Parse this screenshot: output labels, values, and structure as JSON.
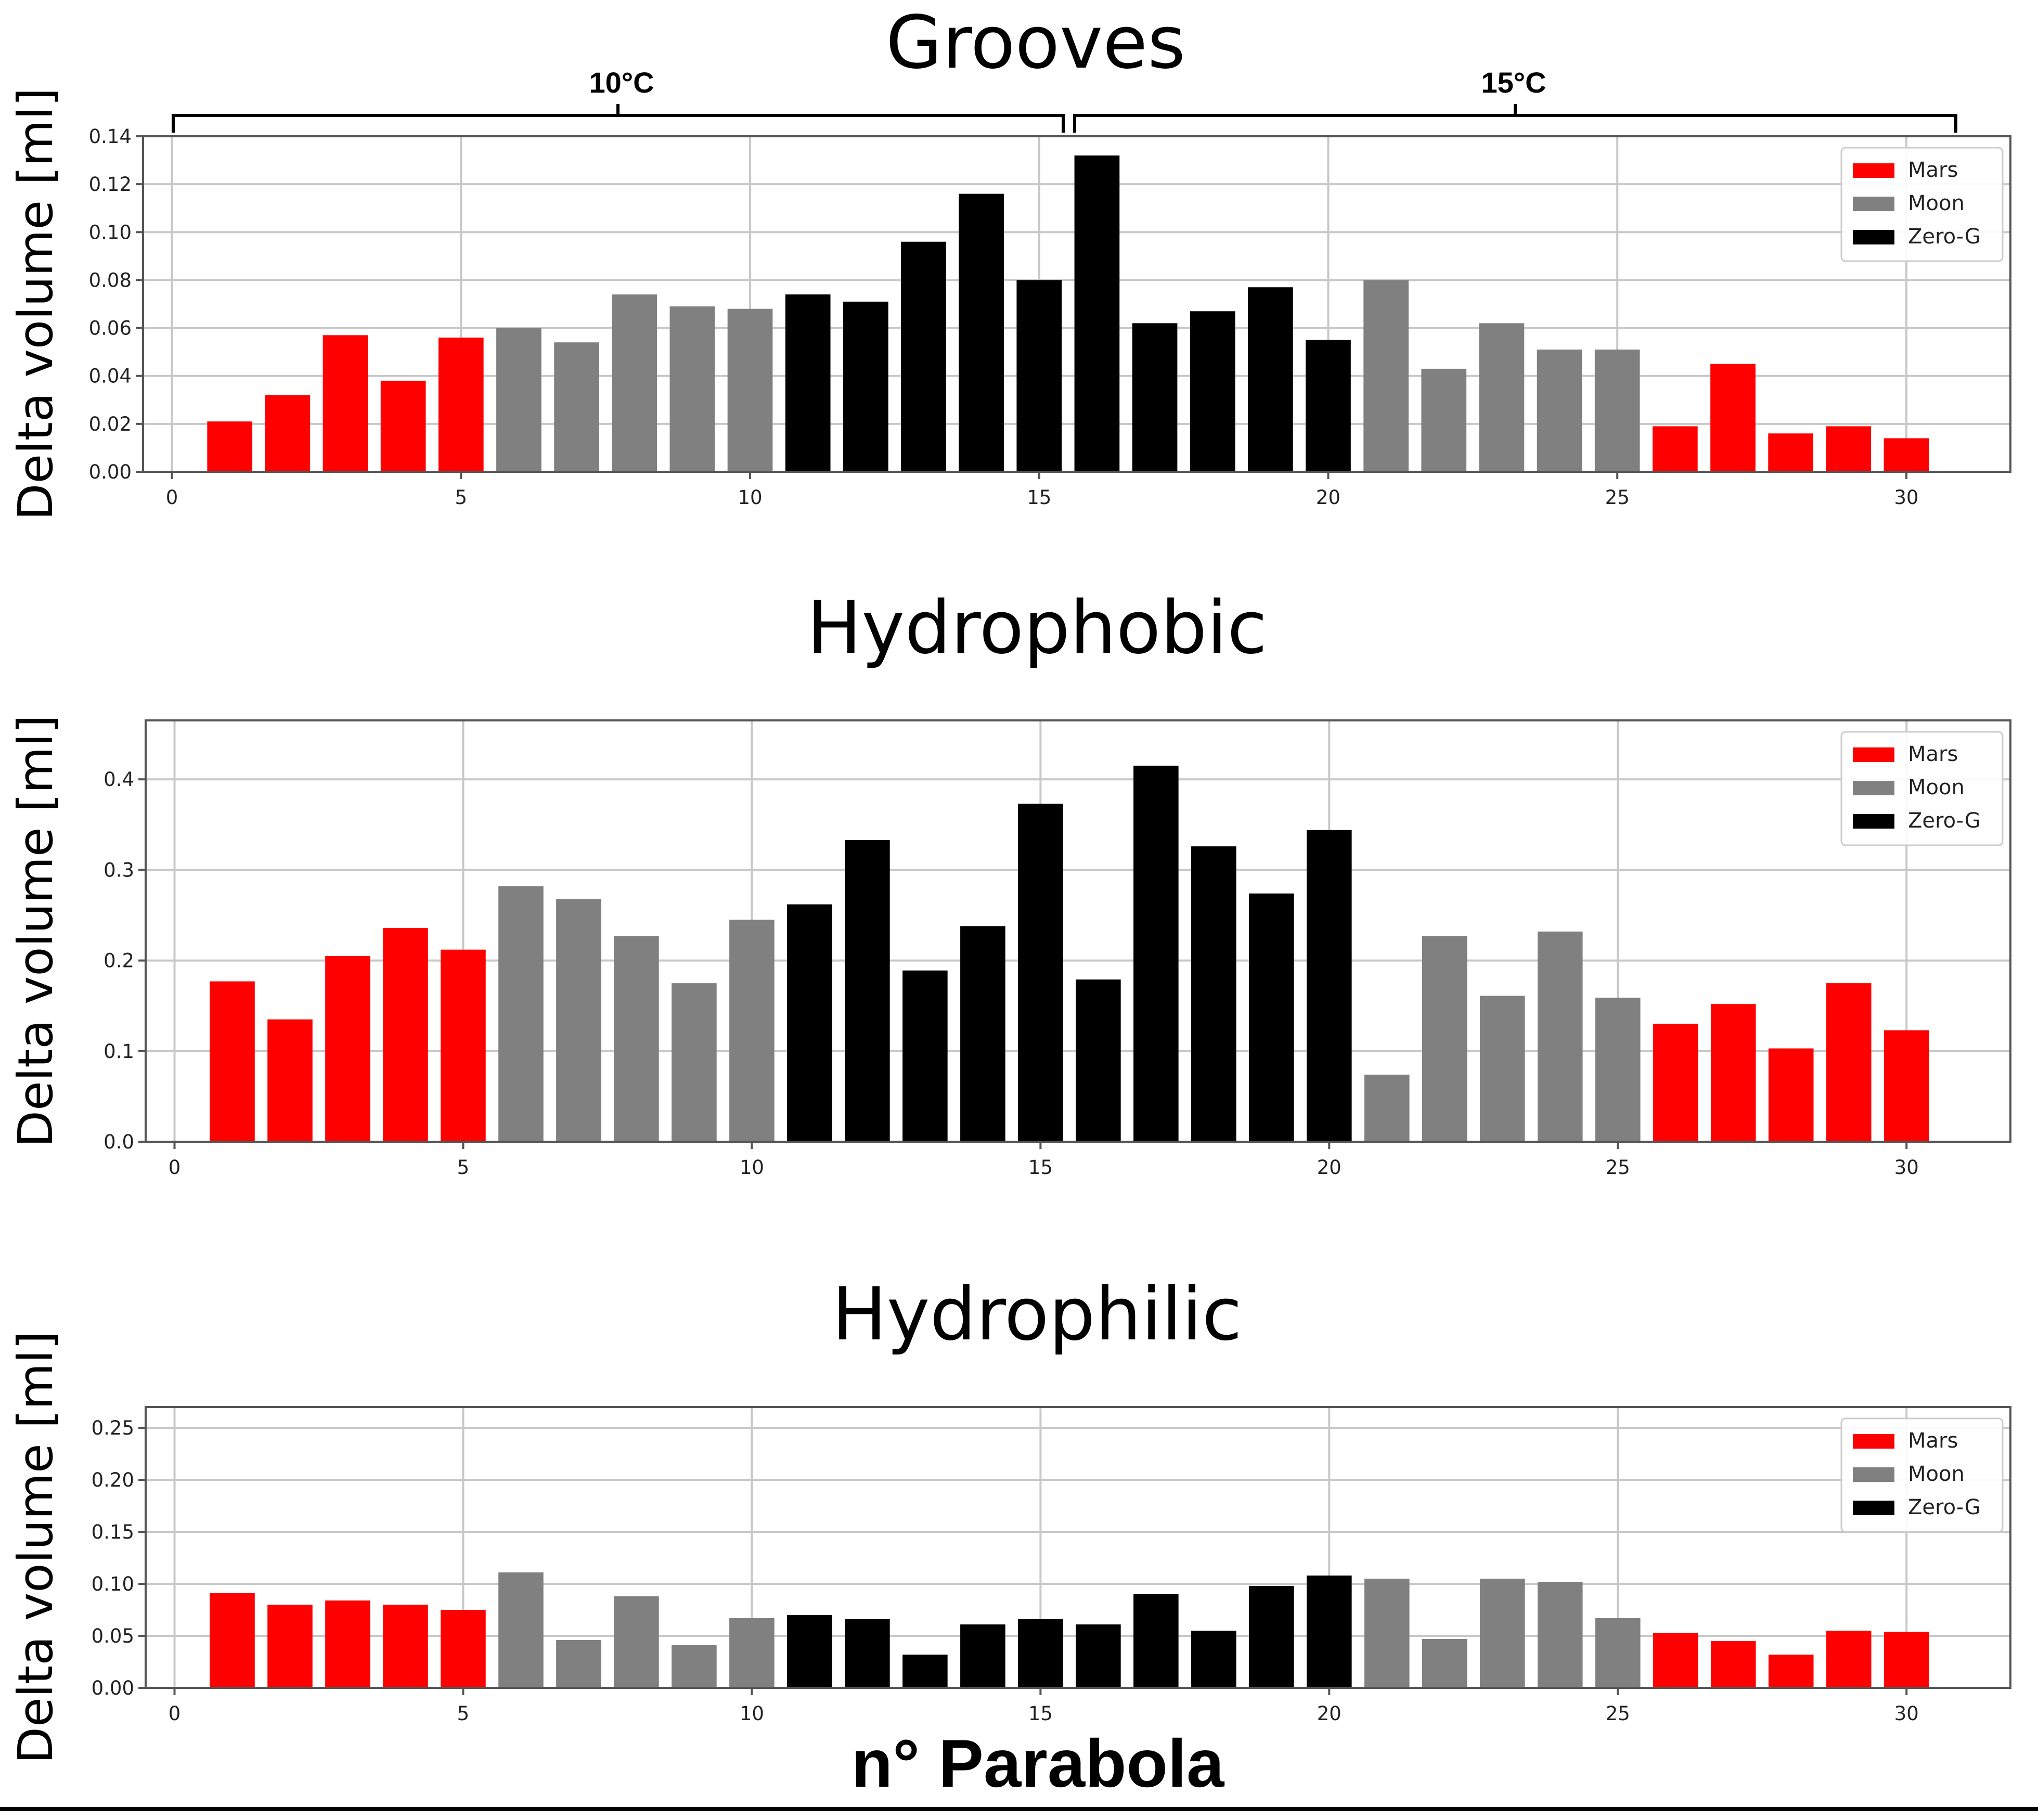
{
  "x_axis_label": "n° Parabola",
  "legend_labels": {
    "mars": "Mars",
    "moon": "Moon",
    "zero_g": "Zero-G"
  },
  "colors": {
    "mars": "#ff0000",
    "moon": "#808080",
    "zero_g": "#000000"
  },
  "bracket_labels": [
    "10°C",
    "15°C"
  ],
  "chart_data": [
    {
      "type": "bar",
      "title": "Grooves",
      "ylabel": "Delta volume [ml]",
      "xlim": [
        -0.5,
        31.8
      ],
      "ylim": [
        0,
        0.14
      ],
      "xticks": [
        0,
        5,
        10,
        15,
        20,
        25,
        30
      ],
      "xtick_labels": [
        "0",
        "5",
        "10",
        "15",
        "20",
        "25",
        "30"
      ],
      "yticks": [
        0,
        0.02,
        0.04,
        0.06,
        0.08,
        0.1,
        0.12,
        0.14
      ],
      "ytick_labels": [
        "0.00",
        "0.02",
        "0.04",
        "0.06",
        "0.08",
        "0.10",
        "0.12",
        "0.14"
      ],
      "grid": true,
      "legend": "top-right",
      "bars": [
        {
          "x": 1,
          "y": 0.021,
          "group": "mars"
        },
        {
          "x": 2,
          "y": 0.032,
          "group": "mars"
        },
        {
          "x": 3,
          "y": 0.057,
          "group": "mars"
        },
        {
          "x": 4,
          "y": 0.038,
          "group": "mars"
        },
        {
          "x": 5,
          "y": 0.056,
          "group": "mars"
        },
        {
          "x": 6,
          "y": 0.06,
          "group": "moon"
        },
        {
          "x": 7,
          "y": 0.054,
          "group": "moon"
        },
        {
          "x": 8,
          "y": 0.074,
          "group": "moon"
        },
        {
          "x": 9,
          "y": 0.069,
          "group": "moon"
        },
        {
          "x": 10,
          "y": 0.068,
          "group": "moon"
        },
        {
          "x": 11,
          "y": 0.074,
          "group": "zero_g"
        },
        {
          "x": 12,
          "y": 0.071,
          "group": "zero_g"
        },
        {
          "x": 13,
          "y": 0.096,
          "group": "zero_g"
        },
        {
          "x": 14,
          "y": 0.116,
          "group": "zero_g"
        },
        {
          "x": 15,
          "y": 0.08,
          "group": "zero_g"
        },
        {
          "x": 16,
          "y": 0.132,
          "group": "zero_g"
        },
        {
          "x": 17,
          "y": 0.062,
          "group": "zero_g"
        },
        {
          "x": 18,
          "y": 0.067,
          "group": "zero_g"
        },
        {
          "x": 19,
          "y": 0.077,
          "group": "zero_g"
        },
        {
          "x": 20,
          "y": 0.055,
          "group": "zero_g"
        },
        {
          "x": 21,
          "y": 0.08,
          "group": "moon"
        },
        {
          "x": 22,
          "y": 0.043,
          "group": "moon"
        },
        {
          "x": 23,
          "y": 0.062,
          "group": "moon"
        },
        {
          "x": 24,
          "y": 0.051,
          "group": "moon"
        },
        {
          "x": 25,
          "y": 0.051,
          "group": "moon"
        },
        {
          "x": 26,
          "y": 0.019,
          "group": "mars"
        },
        {
          "x": 27,
          "y": 0.045,
          "group": "mars"
        },
        {
          "x": 28,
          "y": 0.016,
          "group": "mars"
        },
        {
          "x": 29,
          "y": 0.019,
          "group": "mars"
        },
        {
          "x": 30,
          "y": 0.014,
          "group": "mars"
        }
      ]
    },
    {
      "type": "bar",
      "title": "Hydrophobic",
      "ylabel": "Delta volume [ml]",
      "xlim": [
        -0.5,
        31.8
      ],
      "ylim": [
        0,
        0.465
      ],
      "xticks": [
        0,
        5,
        10,
        15,
        20,
        25,
        30
      ],
      "xtick_labels": [
        "0",
        "5",
        "10",
        "15",
        "20",
        "25",
        "30"
      ],
      "yticks": [
        0,
        0.1,
        0.2,
        0.3,
        0.4
      ],
      "ytick_labels": [
        "0.0",
        "0.1",
        "0.2",
        "0.3",
        "0.4"
      ],
      "grid": true,
      "legend": "top-right",
      "bars": [
        {
          "x": 1,
          "y": 0.177,
          "group": "mars"
        },
        {
          "x": 2,
          "y": 0.135,
          "group": "mars"
        },
        {
          "x": 3,
          "y": 0.205,
          "group": "mars"
        },
        {
          "x": 4,
          "y": 0.236,
          "group": "mars"
        },
        {
          "x": 5,
          "y": 0.212,
          "group": "mars"
        },
        {
          "x": 6,
          "y": 0.282,
          "group": "moon"
        },
        {
          "x": 7,
          "y": 0.268,
          "group": "moon"
        },
        {
          "x": 8,
          "y": 0.227,
          "group": "moon"
        },
        {
          "x": 9,
          "y": 0.175,
          "group": "moon"
        },
        {
          "x": 10,
          "y": 0.245,
          "group": "moon"
        },
        {
          "x": 11,
          "y": 0.262,
          "group": "zero_g"
        },
        {
          "x": 12,
          "y": 0.333,
          "group": "zero_g"
        },
        {
          "x": 13,
          "y": 0.189,
          "group": "zero_g"
        },
        {
          "x": 14,
          "y": 0.238,
          "group": "zero_g"
        },
        {
          "x": 15,
          "y": 0.373,
          "group": "zero_g"
        },
        {
          "x": 16,
          "y": 0.179,
          "group": "zero_g"
        },
        {
          "x": 17,
          "y": 0.415,
          "group": "zero_g"
        },
        {
          "x": 18,
          "y": 0.326,
          "group": "zero_g"
        },
        {
          "x": 19,
          "y": 0.274,
          "group": "zero_g"
        },
        {
          "x": 20,
          "y": 0.344,
          "group": "zero_g"
        },
        {
          "x": 21,
          "y": 0.074,
          "group": "moon"
        },
        {
          "x": 22,
          "y": 0.227,
          "group": "moon"
        },
        {
          "x": 23,
          "y": 0.161,
          "group": "moon"
        },
        {
          "x": 24,
          "y": 0.232,
          "group": "moon"
        },
        {
          "x": 25,
          "y": 0.159,
          "group": "moon"
        },
        {
          "x": 26,
          "y": 0.13,
          "group": "mars"
        },
        {
          "x": 27,
          "y": 0.152,
          "group": "mars"
        },
        {
          "x": 28,
          "y": 0.103,
          "group": "mars"
        },
        {
          "x": 29,
          "y": 0.175,
          "group": "mars"
        },
        {
          "x": 30,
          "y": 0.123,
          "group": "mars"
        }
      ]
    },
    {
      "type": "bar",
      "title": "Hydrophilic",
      "ylabel": "Delta volume [ml]",
      "xlim": [
        -0.5,
        31.8
      ],
      "ylim": [
        0,
        0.27
      ],
      "xticks": [
        0,
        5,
        10,
        15,
        20,
        25,
        30
      ],
      "xtick_labels": [
        "0",
        "5",
        "10",
        "15",
        "20",
        "25",
        "30"
      ],
      "yticks": [
        0,
        0.05,
        0.1,
        0.15,
        0.2,
        0.25
      ],
      "ytick_labels": [
        "0.00",
        "0.05",
        "0.10",
        "0.15",
        "0.20",
        "0.25"
      ],
      "grid": true,
      "legend": "top-right",
      "bars": [
        {
          "x": 1,
          "y": 0.091,
          "group": "mars"
        },
        {
          "x": 2,
          "y": 0.08,
          "group": "mars"
        },
        {
          "x": 3,
          "y": 0.084,
          "group": "mars"
        },
        {
          "x": 4,
          "y": 0.08,
          "group": "mars"
        },
        {
          "x": 5,
          "y": 0.075,
          "group": "mars"
        },
        {
          "x": 6,
          "y": 0.111,
          "group": "moon"
        },
        {
          "x": 7,
          "y": 0.046,
          "group": "moon"
        },
        {
          "x": 8,
          "y": 0.088,
          "group": "moon"
        },
        {
          "x": 9,
          "y": 0.041,
          "group": "moon"
        },
        {
          "x": 10,
          "y": 0.067,
          "group": "moon"
        },
        {
          "x": 11,
          "y": 0.07,
          "group": "zero_g"
        },
        {
          "x": 12,
          "y": 0.066,
          "group": "zero_g"
        },
        {
          "x": 13,
          "y": 0.032,
          "group": "zero_g"
        },
        {
          "x": 14,
          "y": 0.061,
          "group": "zero_g"
        },
        {
          "x": 15,
          "y": 0.066,
          "group": "zero_g"
        },
        {
          "x": 16,
          "y": 0.061,
          "group": "zero_g"
        },
        {
          "x": 17,
          "y": 0.09,
          "group": "zero_g"
        },
        {
          "x": 18,
          "y": 0.055,
          "group": "zero_g"
        },
        {
          "x": 19,
          "y": 0.098,
          "group": "zero_g"
        },
        {
          "x": 20,
          "y": 0.108,
          "group": "zero_g"
        },
        {
          "x": 21,
          "y": 0.105,
          "group": "moon"
        },
        {
          "x": 22,
          "y": 0.047,
          "group": "moon"
        },
        {
          "x": 23,
          "y": 0.105,
          "group": "moon"
        },
        {
          "x": 24,
          "y": 0.102,
          "group": "moon"
        },
        {
          "x": 25,
          "y": 0.067,
          "group": "moon"
        },
        {
          "x": 26,
          "y": 0.053,
          "group": "mars"
        },
        {
          "x": 27,
          "y": 0.045,
          "group": "mars"
        },
        {
          "x": 28,
          "y": 0.032,
          "group": "mars"
        },
        {
          "x": 29,
          "y": 0.055,
          "group": "mars"
        },
        {
          "x": 30,
          "y": 0.054,
          "group": "mars"
        }
      ]
    }
  ]
}
